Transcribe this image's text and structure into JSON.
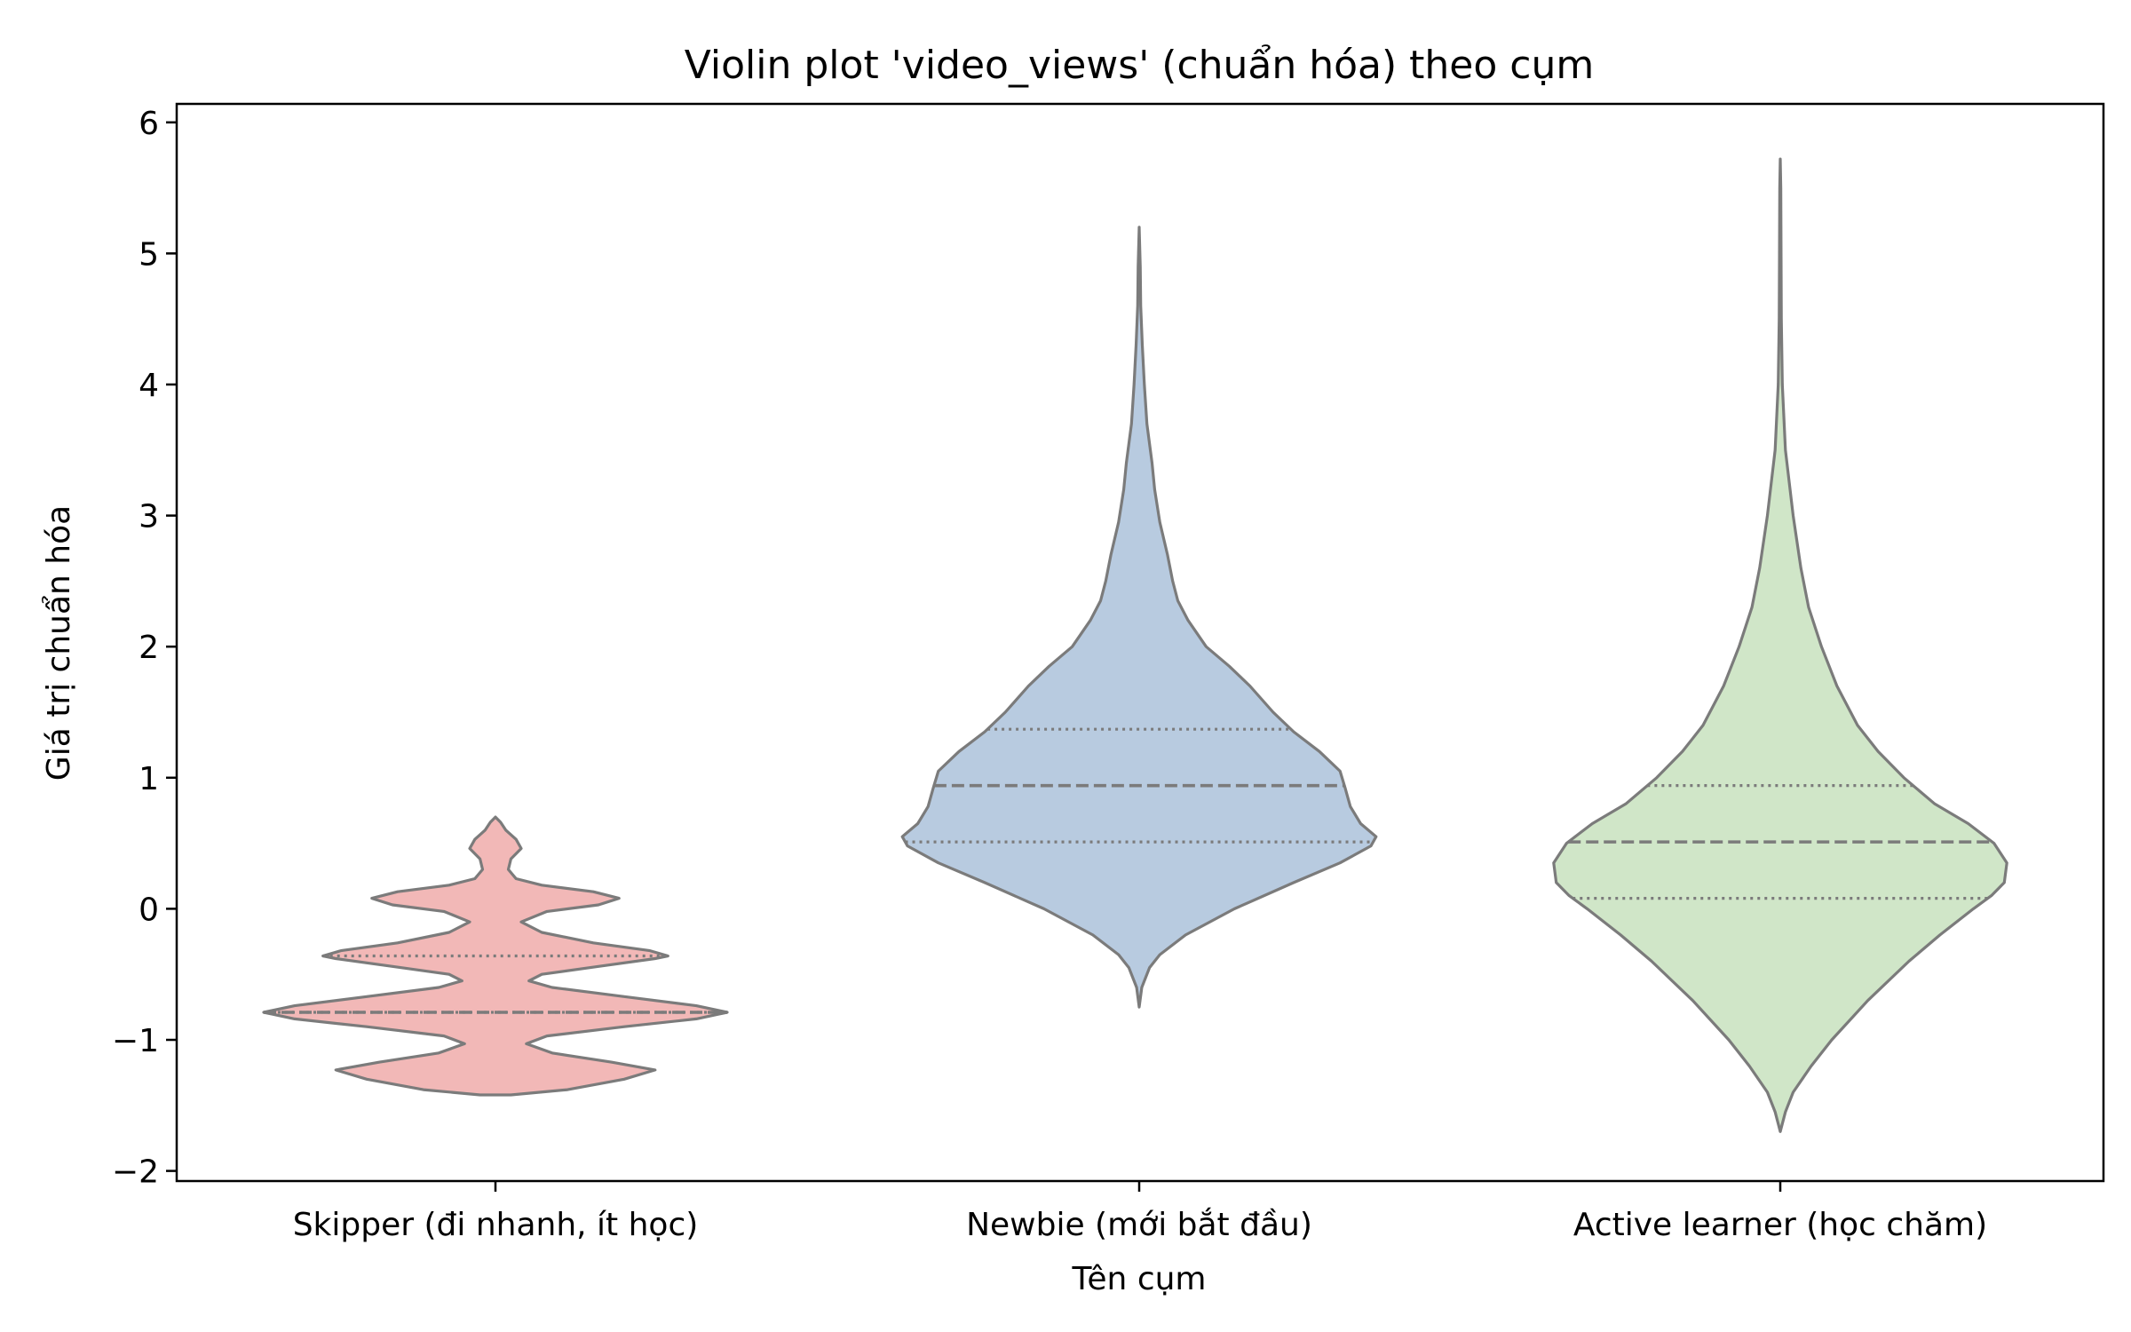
{
  "chart_data": {
    "type": "violin",
    "title": "Violin plot 'video_views' (chuẩn hóa) theo cụm",
    "xlabel": "Tên cụm",
    "ylabel": "Giá trị chuẩn hóa",
    "ylim": [
      -2.07,
      6.12
    ],
    "yticks": [
      -2,
      -1,
      0,
      1,
      2,
      3,
      4,
      5,
      6
    ],
    "ytick_labels": [
      "−2",
      "−1",
      "0",
      "1",
      "2",
      "3",
      "4",
      "5",
      "6"
    ],
    "grid": false,
    "inner": "quartile",
    "categories": [
      "Skipper (đi nhanh, ít học)",
      "Newbie (mới bắt đầu)",
      "Active learner (học chăm)"
    ],
    "violins": [
      {
        "category": "Skipper (đi nhanh, ít học)",
        "color": "#f2b8b7",
        "quartiles": [
          -0.79,
          -0.79,
          -0.36
        ],
        "y_min": -1.42,
        "y_max": 0.7,
        "profile": [
          [
            -1.42,
            0.06
          ],
          [
            -1.38,
            0.28
          ],
          [
            -1.3,
            0.5
          ],
          [
            -1.23,
            0.62
          ],
          [
            -1.17,
            0.45
          ],
          [
            -1.1,
            0.22
          ],
          [
            -1.03,
            0.12
          ],
          [
            -0.97,
            0.2
          ],
          [
            -0.9,
            0.5
          ],
          [
            -0.84,
            0.78
          ],
          [
            -0.79,
            0.9
          ],
          [
            -0.74,
            0.78
          ],
          [
            -0.67,
            0.5
          ],
          [
            -0.6,
            0.22
          ],
          [
            -0.55,
            0.13
          ],
          [
            -0.5,
            0.18
          ],
          [
            -0.44,
            0.4
          ],
          [
            -0.38,
            0.62
          ],
          [
            -0.36,
            0.67
          ],
          [
            -0.32,
            0.6
          ],
          [
            -0.26,
            0.38
          ],
          [
            -0.18,
            0.18
          ],
          [
            -0.1,
            0.1
          ],
          [
            -0.02,
            0.2
          ],
          [
            0.03,
            0.4
          ],
          [
            0.08,
            0.48
          ],
          [
            0.13,
            0.38
          ],
          [
            0.18,
            0.18
          ],
          [
            0.23,
            0.08
          ],
          [
            0.3,
            0.05
          ],
          [
            0.38,
            0.06
          ],
          [
            0.46,
            0.1
          ],
          [
            0.53,
            0.08
          ],
          [
            0.6,
            0.04
          ],
          [
            0.66,
            0.02
          ],
          [
            0.7,
            0.0
          ]
        ]
      },
      {
        "category": "Newbie (mới bắt đầu)",
        "color": "#b8cbe0",
        "quartiles": [
          0.51,
          0.94,
          1.37
        ],
        "y_min": -0.75,
        "y_max": 5.2,
        "profile": [
          [
            -0.75,
            0.0
          ],
          [
            -0.6,
            0.01
          ],
          [
            -0.45,
            0.04
          ],
          [
            -0.35,
            0.08
          ],
          [
            -0.2,
            0.18
          ],
          [
            0.0,
            0.37
          ],
          [
            0.2,
            0.6
          ],
          [
            0.35,
            0.78
          ],
          [
            0.48,
            0.9
          ],
          [
            0.55,
            0.92
          ],
          [
            0.65,
            0.86
          ],
          [
            0.78,
            0.82
          ],
          [
            0.92,
            0.8
          ],
          [
            1.05,
            0.78
          ],
          [
            1.2,
            0.7
          ],
          [
            1.35,
            0.6
          ],
          [
            1.5,
            0.52
          ],
          [
            1.7,
            0.43
          ],
          [
            1.85,
            0.35
          ],
          [
            2.0,
            0.26
          ],
          [
            2.2,
            0.19
          ],
          [
            2.35,
            0.15
          ],
          [
            2.5,
            0.13
          ],
          [
            2.7,
            0.11
          ],
          [
            2.95,
            0.08
          ],
          [
            3.2,
            0.06
          ],
          [
            3.4,
            0.05
          ],
          [
            3.7,
            0.03
          ],
          [
            4.0,
            0.02
          ],
          [
            4.3,
            0.012
          ],
          [
            4.6,
            0.006
          ],
          [
            4.9,
            0.004
          ],
          [
            5.2,
            0.0
          ]
        ]
      },
      {
        "category": "Active learner (học chăm)",
        "color": "#d0e6c8",
        "quartiles": [
          0.08,
          0.51,
          0.94
        ],
        "y_min": -1.7,
        "y_max": 5.72,
        "profile": [
          [
            -1.7,
            0.0
          ],
          [
            -1.55,
            0.02
          ],
          [
            -1.4,
            0.05
          ],
          [
            -1.2,
            0.12
          ],
          [
            -1.0,
            0.2
          ],
          [
            -0.7,
            0.34
          ],
          [
            -0.4,
            0.5
          ],
          [
            -0.2,
            0.62
          ],
          [
            0.0,
            0.75
          ],
          [
            0.1,
            0.82
          ],
          [
            0.2,
            0.87
          ],
          [
            0.35,
            0.88
          ],
          [
            0.5,
            0.83
          ],
          [
            0.65,
            0.73
          ],
          [
            0.8,
            0.6
          ],
          [
            1.0,
            0.48
          ],
          [
            1.2,
            0.38
          ],
          [
            1.4,
            0.3
          ],
          [
            1.7,
            0.22
          ],
          [
            2.0,
            0.16
          ],
          [
            2.3,
            0.11
          ],
          [
            2.6,
            0.08
          ],
          [
            3.0,
            0.05
          ],
          [
            3.5,
            0.02
          ],
          [
            4.0,
            0.008
          ],
          [
            4.5,
            0.004
          ],
          [
            5.0,
            0.003
          ],
          [
            5.5,
            0.002
          ],
          [
            5.72,
            0.0
          ]
        ]
      }
    ]
  }
}
